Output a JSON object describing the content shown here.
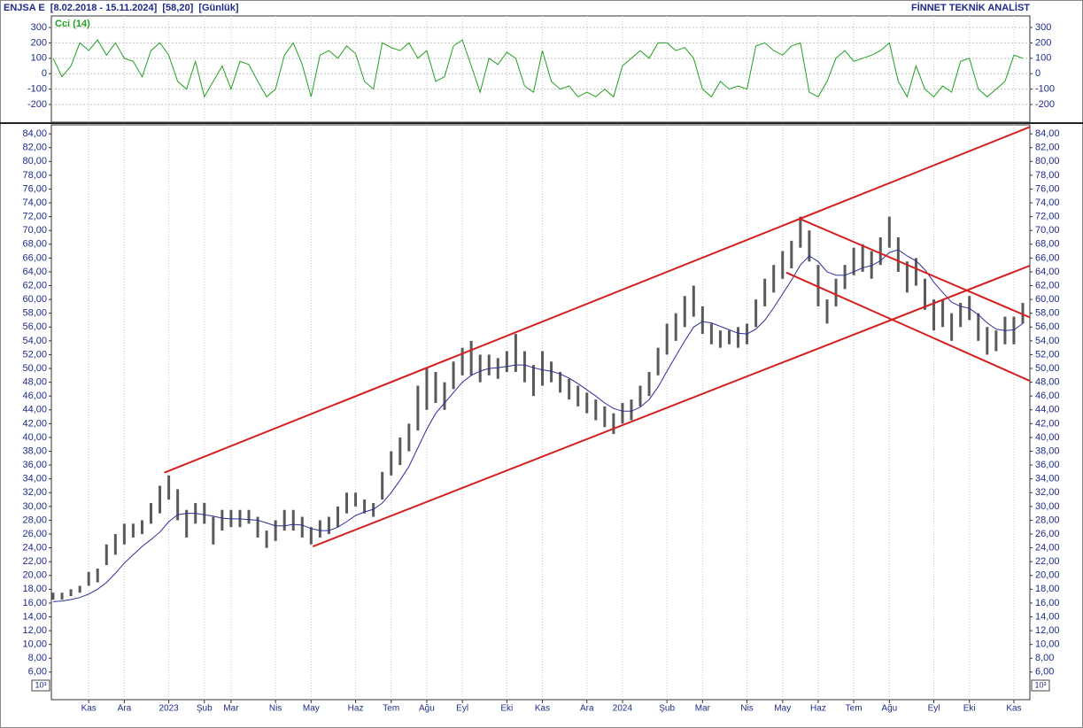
{
  "header": {
    "left": "ENJSA E  [8.02.2018 - 15.11.2024]  [58,20]  [Günlük]",
    "right": "FİNNET TEKNİK ANALİST"
  },
  "chart_data": [
    {
      "type": "line",
      "title": "Cci (14)",
      "color": "#22a022",
      "grid": true,
      "ylim": [
        -315,
        375
      ],
      "yticks": [
        -200,
        -100,
        0,
        100,
        200,
        300
      ],
      "values": [
        100,
        -20,
        50,
        200,
        150,
        220,
        120,
        200,
        100,
        80,
        -20,
        150,
        200,
        120,
        -50,
        -100,
        80,
        -150,
        -50,
        50,
        -100,
        80,
        60,
        -50,
        -150,
        -100,
        120,
        200,
        60,
        -150,
        120,
        150,
        100,
        180,
        130,
        -50,
        -100,
        200,
        170,
        150,
        200,
        100,
        150,
        -50,
        -20,
        180,
        220,
        50,
        -120,
        100,
        60,
        140,
        100,
        -80,
        -120,
        150,
        -50,
        -100,
        -80,
        -150,
        -120,
        -150,
        -100,
        -150,
        50,
        100,
        150,
        100,
        200,
        200,
        150,
        170,
        100,
        -100,
        -150,
        -50,
        -100,
        -80,
        -100,
        180,
        200,
        150,
        120,
        180,
        200,
        -120,
        -150,
        -50,
        100,
        150,
        80,
        100,
        120,
        150,
        200,
        -50,
        -150,
        50,
        -100,
        -150,
        -80,
        -120,
        80,
        100,
        -100,
        -150,
        -100,
        -50,
        120,
        100
      ]
    },
    {
      "type": "ohlc",
      "bar_color": "#5a5a5a",
      "ma_color": "#2e2e9a",
      "grid": "x",
      "unit_label": "10³",
      "ylim": [
        2,
        85.3
      ],
      "yticks": [
        {
          "value": 6,
          "label": "6,00"
        },
        {
          "value": 8,
          "label": "8,00"
        },
        {
          "value": 10,
          "label": "10,00"
        },
        {
          "value": 12,
          "label": "12,00"
        },
        {
          "value": 14,
          "label": "14,00"
        },
        {
          "value": 16,
          "label": "16,00"
        },
        {
          "value": 18,
          "label": "18,00"
        },
        {
          "value": 20,
          "label": "20,00"
        },
        {
          "value": 22,
          "label": "22,00"
        },
        {
          "value": 24,
          "label": "24,00"
        },
        {
          "value": 26,
          "label": "26,00"
        },
        {
          "value": 28,
          "label": "28,00"
        },
        {
          "value": 30,
          "label": "30,00"
        },
        {
          "value": 32,
          "label": "32,00"
        },
        {
          "value": 34,
          "label": "34,00"
        },
        {
          "value": 36,
          "label": "36,00"
        },
        {
          "value": 38,
          "label": "38,00"
        },
        {
          "value": 40,
          "label": "40,00"
        },
        {
          "value": 42,
          "label": "42,00"
        },
        {
          "value": 44,
          "label": "44,00"
        },
        {
          "value": 46,
          "label": "46,00"
        },
        {
          "value": 48,
          "label": "48,00"
        },
        {
          "value": 50,
          "label": "50,00"
        },
        {
          "value": 52,
          "label": "52,00"
        },
        {
          "value": 54,
          "label": "54,00"
        },
        {
          "value": 56,
          "label": "56,00"
        },
        {
          "value": 58,
          "label": "58,00"
        },
        {
          "value": 60,
          "label": "60,00"
        },
        {
          "value": 62,
          "label": "62,00"
        },
        {
          "value": 64,
          "label": "64,00"
        },
        {
          "value": 66,
          "label": "66,00"
        },
        {
          "value": 68,
          "label": "68,00"
        },
        {
          "value": 70,
          "label": "70,00"
        },
        {
          "value": 72,
          "label": "72,00"
        },
        {
          "value": 74,
          "label": "74,00"
        },
        {
          "value": 76,
          "label": "76,00"
        },
        {
          "value": 78,
          "label": "78,00"
        },
        {
          "value": 80,
          "label": "80,00"
        },
        {
          "value": 82,
          "label": "82,00"
        },
        {
          "value": 84,
          "label": "84,00"
        }
      ],
      "categories": [
        null,
        null,
        null,
        null,
        "Kas",
        null,
        null,
        null,
        "Ara",
        null,
        null,
        null,
        null,
        "2023",
        null,
        null,
        null,
        "Şub",
        null,
        null,
        "Mar",
        null,
        null,
        null,
        null,
        "Nis",
        null,
        null,
        null,
        "May",
        null,
        null,
        null,
        null,
        "Haz",
        null,
        null,
        null,
        "Tem",
        null,
        null,
        null,
        "Ağu",
        null,
        null,
        null,
        "Eyl",
        null,
        null,
        null,
        null,
        "Eki",
        null,
        null,
        null,
        "Kas",
        null,
        null,
        null,
        null,
        "Ara",
        null,
        null,
        null,
        "2024",
        null,
        null,
        null,
        null,
        "Şub",
        null,
        null,
        null,
        "Mar",
        null,
        null,
        null,
        null,
        "Nis",
        null,
        null,
        null,
        "May",
        null,
        null,
        null,
        "Haz",
        null,
        null,
        null,
        "Tem",
        null,
        null,
        null,
        "Ağu",
        null,
        null,
        null,
        null,
        "Eyl",
        null,
        null,
        null,
        "Eki",
        null,
        null,
        null,
        null,
        "Kas",
        null
      ],
      "high": [
        17.5,
        17.5,
        18,
        18.5,
        20.5,
        21,
        24.5,
        26,
        27.5,
        27.5,
        28,
        30.5,
        33,
        34.5,
        32.5,
        29.5,
        30.5,
        30.5,
        28.5,
        29.5,
        29.5,
        29.5,
        29.5,
        28.5,
        26.5,
        28,
        29.5,
        29.5,
        28.5,
        27,
        28,
        28.5,
        30,
        32,
        32,
        31,
        30.5,
        35,
        38,
        40,
        42,
        47.5,
        50,
        49.5,
        48,
        51,
        53,
        54,
        52,
        52,
        51.5,
        52.5,
        55,
        52.5,
        50.5,
        52.5,
        51,
        49.5,
        48.5,
        47.5,
        46.5,
        45.5,
        44.5,
        43.5,
        45,
        45.5,
        47.5,
        49.5,
        53,
        56.5,
        58,
        60.5,
        62,
        59,
        56.5,
        55.5,
        55.5,
        56,
        56.5,
        60,
        63,
        65,
        67,
        68.5,
        72,
        70,
        65,
        60,
        63,
        65,
        67.5,
        68,
        67,
        69,
        72,
        69,
        65.5,
        66,
        63,
        60,
        60,
        58,
        59.5,
        60.5,
        58,
        56,
        55.5,
        57.5,
        57.5,
        59.5
      ],
      "low": [
        16.5,
        16.5,
        17,
        17.5,
        18.5,
        19,
        21.5,
        23,
        24.5,
        25.5,
        26,
        27.5,
        29,
        31,
        28,
        25.5,
        27.5,
        27.5,
        24.5,
        26.5,
        27,
        27,
        27.5,
        25.5,
        24,
        25,
        26.5,
        26.5,
        25.5,
        24.5,
        25.5,
        26,
        27,
        29,
        30,
        29,
        28.5,
        31,
        34.5,
        36,
        38,
        41,
        44,
        45,
        44,
        47,
        49,
        49,
        48,
        49,
        48.5,
        49.5,
        49.5,
        48,
        46,
        47.5,
        48,
        46.5,
        45.5,
        44.5,
        43.5,
        42.5,
        41.5,
        40.5,
        42,
        42.5,
        44.5,
        46,
        49,
        52,
        54,
        56,
        57.5,
        55,
        53.5,
        53,
        53.5,
        53,
        53.5,
        56,
        59,
        61,
        63,
        64.5,
        67.5,
        65.5,
        59,
        56.5,
        59,
        61.5,
        63.5,
        64,
        63,
        65,
        67.5,
        64,
        61,
        62,
        58.5,
        55.5,
        56,
        54,
        56,
        57,
        54,
        52,
        52.5,
        53.5,
        53.5,
        56.5
      ],
      "ma": [
        16.2,
        16.3,
        16.5,
        16.8,
        17.3,
        18,
        19,
        20.3,
        21.8,
        23,
        24.2,
        25.2,
        26.3,
        27.8,
        28.8,
        29,
        29,
        28.8,
        28.6,
        28.3,
        28.2,
        28.2,
        28.1,
        28,
        27.6,
        27.2,
        27.2,
        27.4,
        27.3,
        26.8,
        26.5,
        26.5,
        27,
        27.8,
        28.7,
        29.2,
        29.6,
        30.5,
        32,
        33.8,
        35.8,
        38.5,
        41.2,
        43.5,
        45,
        46.5,
        48,
        49,
        49.6,
        50,
        50.1,
        50.3,
        50.5,
        50.5,
        50.1,
        49.8,
        49.6,
        49.2,
        48.6,
        47.8,
        46.9,
        46,
        45,
        44.2,
        43.8,
        43.8,
        44.4,
        45.5,
        47.3,
        49.6,
        51.8,
        54,
        56,
        56.8,
        56.6,
        56.1,
        55.6,
        55.1,
        55,
        55.7,
        57,
        58.8,
        60.8,
        62.8,
        65,
        66.3,
        65.5,
        64,
        63.5,
        63.5,
        64,
        64.6,
        64.9,
        65.6,
        66.8,
        67.2,
        66.3,
        65.6,
        64.3,
        62.5,
        61,
        59.6,
        59,
        58.7,
        57.8,
        56.6,
        55.7,
        55.5,
        55.6,
        56.5
      ],
      "trend_lines": [
        {
          "color": "#d42020",
          "x": [
            12.5,
            109.8
          ],
          "y": [
            34.9,
            85.0
          ]
        },
        {
          "color": "#d42020",
          "x": [
            29.2,
            109.8
          ],
          "y": [
            24.2,
            64.9
          ]
        },
        {
          "color": "#d42020",
          "x": [
            83.9,
            109.8
          ],
          "y": [
            71.7,
            57.4
          ]
        },
        {
          "color": "#d42020",
          "x": [
            82.4,
            109.8
          ],
          "y": [
            63.9,
            48.2
          ]
        }
      ]
    }
  ]
}
